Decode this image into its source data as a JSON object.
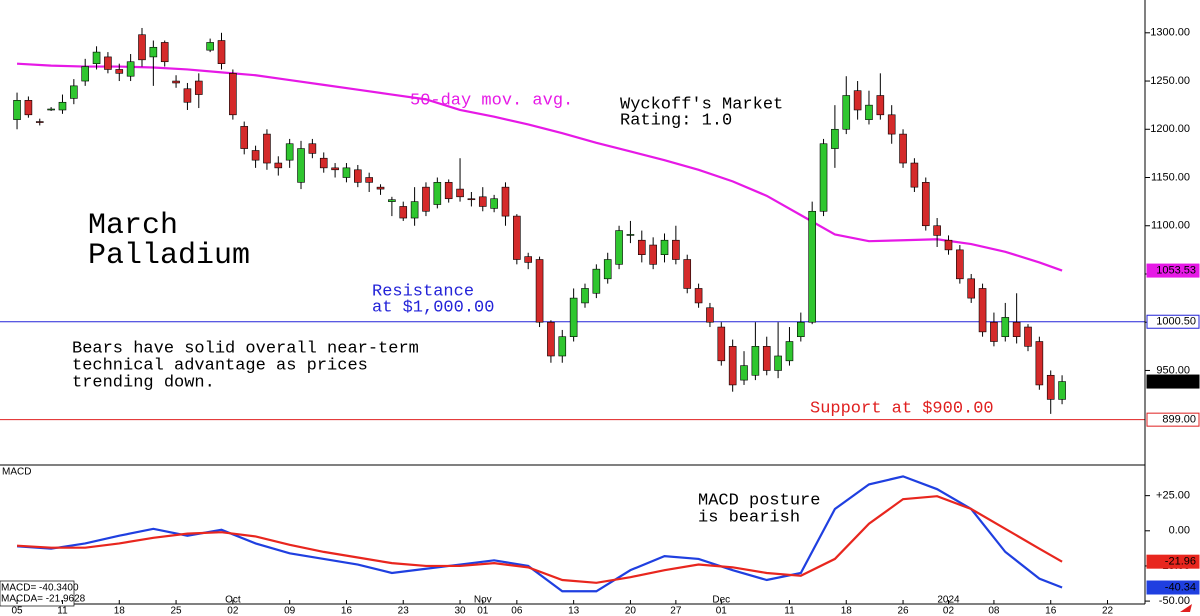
{
  "chart_data": [
    {
      "type": "candlestick",
      "title": [
        "March",
        "Palladium"
      ],
      "annotations": [
        {
          "lines": [
            "Resistance",
            "at $1,000.00"
          ]
        },
        {
          "lines": [
            "Bears have solid overall near-term",
            "technical advantage as prices",
            "trending down."
          ]
        },
        {
          "lines": [
            "Wyckoff's Market",
            "Rating: 1.0"
          ]
        },
        {
          "lines": [
            "Support at $900.00"
          ]
        }
      ],
      "xlim": [
        -1.5,
        99.3
      ],
      "ylim": [
        852,
        1334
      ],
      "yticks": [
        {
          "value": 1300,
          "label": "1300.00"
        },
        {
          "value": 1250,
          "label": "1250.00"
        },
        {
          "value": 1200,
          "label": "1200.00"
        },
        {
          "value": 1150,
          "label": "1150.00"
        },
        {
          "value": 1100,
          "label": "1100.00"
        },
        {
          "value": 1050,
          "label": "1050.00"
        },
        {
          "value": 1000,
          "label": "1000.00"
        },
        {
          "value": 950,
          "label": "950.00"
        }
      ],
      "up_color": "#2fc62f",
      "down_color": "#d42a2a",
      "open": [
        1210,
        1230,
        1208,
        1220,
        1220,
        1232,
        1250,
        1268,
        1275,
        1262,
        1255,
        1298,
        1275,
        1290,
        1250,
        1242,
        1250,
        1282,
        1292,
        1258,
        1203,
        1178,
        1195,
        1165,
        1168,
        1145,
        1185,
        1170,
        1160,
        1150,
        1158,
        1150,
        1140,
        1125,
        1120,
        1108,
        1140,
        1122,
        1145,
        1138,
        1128,
        1130,
        1118,
        1140,
        1110,
        1068,
        1065,
        1000,
        965,
        985,
        1020,
        1030,
        1045,
        1060,
        1090,
        1085,
        1080,
        1070,
        1085,
        1065,
        1035,
        1015,
        995,
        975,
        940,
        945,
        975,
        950,
        960,
        985,
        1000,
        1115,
        1180,
        1200,
        1240,
        1210,
        1235,
        1215,
        1195,
        1165,
        1145,
        1100,
        1085,
        1075,
        1045,
        1035,
        1000,
        985,
        1000,
        995,
        980,
        945,
        920
      ],
      "high": [
        1238,
        1234,
        1211,
        1223,
        1236,
        1252,
        1273,
        1286,
        1280,
        1268,
        1278,
        1305,
        1292,
        1292,
        1256,
        1248,
        1258,
        1294,
        1300,
        1262,
        1208,
        1183,
        1200,
        1172,
        1190,
        1188,
        1190,
        1176,
        1165,
        1165,
        1163,
        1155,
        1143,
        1130,
        1125,
        1140,
        1145,
        1150,
        1148,
        1170,
        1135,
        1140,
        1132,
        1145,
        1112,
        1072,
        1068,
        1002,
        992,
        1035,
        1040,
        1060,
        1072,
        1100,
        1105,
        1095,
        1088,
        1092,
        1100,
        1070,
        1040,
        1020,
        1000,
        982,
        970,
        1000,
        985,
        1000,
        995,
        1010,
        1125,
        1190,
        1225,
        1255,
        1250,
        1240,
        1258,
        1225,
        1200,
        1170,
        1150,
        1108,
        1090,
        1080,
        1050,
        1040,
        1010,
        1020,
        1030,
        998,
        985,
        950,
        945
      ],
      "low": [
        1200,
        1212,
        1204,
        1219,
        1216,
        1226,
        1245,
        1262,
        1258,
        1250,
        1250,
        1265,
        1245,
        1265,
        1243,
        1220,
        1222,
        1280,
        1262,
        1210,
        1174,
        1160,
        1158,
        1152,
        1160,
        1138,
        1170,
        1155,
        1150,
        1145,
        1140,
        1135,
        1132,
        1110,
        1105,
        1100,
        1110,
        1118,
        1124,
        1125,
        1120,
        1115,
        1114,
        1100,
        1060,
        1055,
        995,
        958,
        958,
        980,
        1015,
        1025,
        1040,
        1055,
        1082,
        1062,
        1055,
        1062,
        1060,
        1030,
        1015,
        995,
        955,
        928,
        935,
        940,
        945,
        942,
        955,
        980,
        998,
        1110,
        1160,
        1195,
        1210,
        1205,
        1210,
        1185,
        1160,
        1135,
        1095,
        1078,
        1070,
        1040,
        1020,
        985,
        975,
        980,
        978,
        970,
        930,
        905,
        915
      ],
      "close": [
        1230,
        1215,
        1207,
        1221,
        1228,
        1245,
        1265,
        1280,
        1262,
        1258,
        1270,
        1272,
        1285,
        1270,
        1248,
        1228,
        1236,
        1290,
        1268,
        1215,
        1180,
        1168,
        1165,
        1160,
        1185,
        1180,
        1175,
        1160,
        1158,
        1160,
        1145,
        1145,
        1138,
        1127,
        1108,
        1125,
        1115,
        1145,
        1128,
        1130,
        1127,
        1120,
        1128,
        1110,
        1065,
        1062,
        1000,
        965,
        985,
        1025,
        1035,
        1055,
        1065,
        1095,
        1091,
        1070,
        1060,
        1085,
        1065,
        1035,
        1020,
        1000,
        960,
        935,
        955,
        975,
        950,
        965,
        980,
        1000,
        1115,
        1185,
        1200,
        1235,
        1220,
        1225,
        1215,
        1195,
        1165,
        1140,
        1100,
        1090,
        1075,
        1045,
        1025,
        990,
        980,
        1005,
        985,
        975,
        935,
        920,
        938.5
      ],
      "series": [
        {
          "name": "50-day mov. avg.",
          "color": "#e619e6",
          "x": [
            0,
            3,
            6,
            9,
            12,
            15,
            18,
            21,
            24,
            27,
            30,
            33,
            36,
            39,
            42,
            45,
            48,
            51,
            54,
            57,
            60,
            63,
            66,
            69,
            72,
            75,
            78,
            81,
            84,
            87,
            90,
            92
          ],
          "values": [
            1268,
            1266,
            1265,
            1265,
            1264,
            1262,
            1259,
            1256,
            1251,
            1246,
            1241,
            1236,
            1231,
            1220,
            1213,
            1205,
            1196,
            1186,
            1177,
            1168,
            1158,
            1146,
            1131,
            1111,
            1091,
            1084,
            1085,
            1086,
            1081,
            1073,
            1062,
            1053.53
          ]
        }
      ],
      "hlines": [
        {
          "value": 1000.5,
          "color": "#2323d8"
        },
        {
          "value": 899,
          "color": "#e02020"
        }
      ],
      "price_tags": [
        {
          "value": 1053.53,
          "label": "1053.53",
          "color": "#e619e6",
          "text_color": "#000000"
        },
        {
          "value": 1000.5,
          "label": "1000.50",
          "color": "#ffffff",
          "text_color": "#000000",
          "border": "#2323d8"
        },
        {
          "value": 938.5,
          "label": "938.50",
          "color": "#000000",
          "text_color": "#ffffff"
        },
        {
          "value": 899,
          "label": "899.00",
          "color": "#ffffff",
          "text_color": "#000000",
          "border": "#e02020"
        }
      ]
    },
    {
      "type": "line",
      "title": "MACD",
      "legend": [
        "MACD= -40.3400",
        "MACDA= -21.9628"
      ],
      "annotations": [
        {
          "lines": [
            "MACD posture",
            "is bearish"
          ]
        }
      ],
      "xlim": [
        -1.5,
        99.3
      ],
      "ylim": [
        -60.6,
        46.8
      ],
      "yticks": [
        {
          "value": 25,
          "label": "+25.00"
        },
        {
          "value": 0,
          "label": "0.00"
        },
        {
          "value": -25,
          "label": "-25.00"
        },
        {
          "value": -50,
          "label": "-50.00"
        }
      ],
      "xticks": [
        {
          "value": 0,
          "label": "05"
        },
        {
          "value": 4,
          "label": "11"
        },
        {
          "value": 9,
          "label": "18"
        },
        {
          "value": 14,
          "label": "25"
        },
        {
          "value": 19,
          "label": "02"
        },
        {
          "value": 24,
          "label": "09"
        },
        {
          "value": 29,
          "label": "16"
        },
        {
          "value": 34,
          "label": "23"
        },
        {
          "value": 39,
          "label": "30"
        },
        {
          "value": 41,
          "label": "01"
        },
        {
          "value": 44,
          "label": "06"
        },
        {
          "value": 49,
          "label": "13"
        },
        {
          "value": 54,
          "label": "20"
        },
        {
          "value": 58,
          "label": "27"
        },
        {
          "value": 62,
          "label": "01"
        },
        {
          "value": 68,
          "label": "11"
        },
        {
          "value": 73,
          "label": "18"
        },
        {
          "value": 78,
          "label": "26"
        },
        {
          "value": 82,
          "label": "02"
        },
        {
          "value": 86,
          "label": "08"
        },
        {
          "value": 91,
          "label": "16"
        },
        {
          "value": 96,
          "label": "22"
        }
      ],
      "month_ticks": [
        {
          "value": 19,
          "label": "Oct"
        },
        {
          "value": 41,
          "label": "Nov"
        },
        {
          "value": 62,
          "label": "Dec"
        },
        {
          "value": 82,
          "label": "2024"
        }
      ],
      "series": [
        {
          "color": "#1f3fe0",
          "x": [
            0,
            3,
            6,
            9,
            12,
            15,
            18,
            21,
            24,
            27,
            30,
            33,
            36,
            39,
            42,
            45,
            48,
            51,
            54,
            57,
            60,
            63,
            66,
            69,
            72,
            75,
            78,
            81,
            84,
            87,
            90,
            92
          ],
          "values": [
            -11,
            -12.7,
            -9,
            -3.5,
            1.4,
            -3.5,
            0.7,
            -9,
            -16,
            -20,
            -24,
            -30,
            -27,
            -24,
            -21,
            -25,
            -43,
            -43,
            -28,
            -18,
            -20,
            -28,
            -35,
            -30,
            15.5,
            33,
            38.7,
            29.6,
            15.5,
            -15,
            -34,
            -40.34
          ]
        },
        {
          "color": "#e8261e",
          "x": [
            0,
            3,
            6,
            9,
            12,
            15,
            18,
            21,
            24,
            27,
            30,
            33,
            36,
            39,
            42,
            45,
            48,
            51,
            54,
            57,
            60,
            63,
            66,
            69,
            72,
            75,
            78,
            81,
            84,
            87,
            90,
            92
          ],
          "values": [
            -10.6,
            -12,
            -12,
            -9,
            -5,
            -2,
            -1,
            -4,
            -10,
            -15,
            -19,
            -23,
            -25,
            -25,
            -23,
            -26,
            -35,
            -37,
            -33,
            -28,
            -24,
            -26,
            -30,
            -32,
            -20,
            5,
            22.5,
            24.6,
            15.5,
            1.4,
            -12.7,
            -21.96
          ]
        }
      ],
      "value_tags": [
        {
          "value": -21.96,
          "label": "-21.96",
          "color": "#e8261e",
          "text_color": "#000000"
        },
        {
          "value": -40.34,
          "label": "-40.34",
          "color": "#1f3fe0",
          "text_color": "#ffffff"
        }
      ]
    }
  ]
}
